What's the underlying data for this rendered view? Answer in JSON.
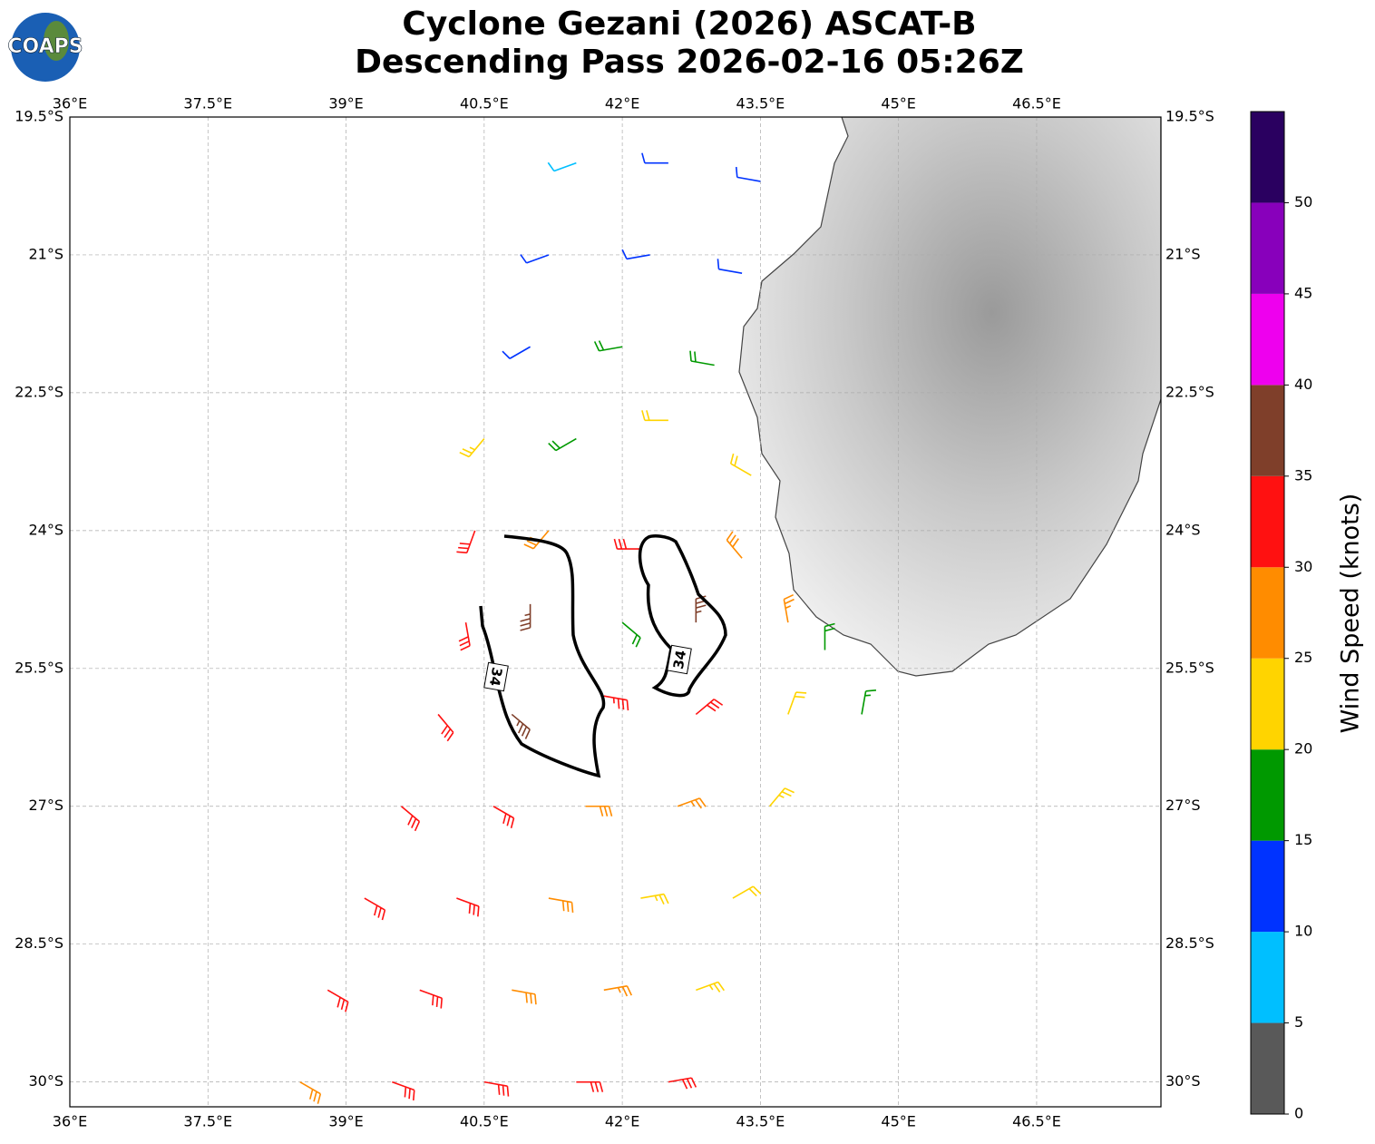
{
  "chart_data": {
    "type": "wind-barb-map",
    "title": "Cyclone Gezani (2026) ASCAT-B",
    "subtitle": "Descending Pass 2026-02-16 05:26Z",
    "logo": "COAPS",
    "xlim": [
      36,
      47.85
    ],
    "ylim": [
      -30.27,
      -19.5
    ],
    "xticks": [
      {
        "value": 36,
        "label": "36°E"
      },
      {
        "value": 37.5,
        "label": "37.5°E"
      },
      {
        "value": 39,
        "label": "39°E"
      },
      {
        "value": 40.5,
        "label": "40.5°E"
      },
      {
        "value": 42,
        "label": "42°E"
      },
      {
        "value": 43.5,
        "label": "43.5°E"
      },
      {
        "value": 45,
        "label": "45°E"
      },
      {
        "value": 46.5,
        "label": "46.5°E"
      }
    ],
    "yticks": [
      {
        "value": -19.5,
        "label": "19.5°S"
      },
      {
        "value": -21,
        "label": "21°S"
      },
      {
        "value": -22.5,
        "label": "22.5°S"
      },
      {
        "value": -24,
        "label": "24°S"
      },
      {
        "value": -25.5,
        "label": "25.5°S"
      },
      {
        "value": -27,
        "label": "27°S"
      },
      {
        "value": -28.5,
        "label": "28.5°S"
      },
      {
        "value": -30,
        "label": "30°S"
      }
    ],
    "grid": true,
    "contour_level": 34,
    "colorbar": {
      "label": "Wind Speed (knots)",
      "bounds": [
        0,
        5,
        10,
        15,
        20,
        25,
        30,
        35,
        40,
        45,
        50,
        55
      ],
      "colors": [
        "#595959",
        "#00bfff",
        "#0033ff",
        "#009900",
        "#ffd400",
        "#ff8c00",
        "#ff1111",
        "#7f3f2a",
        "#ee00ee",
        "#8800bb",
        "#2a0060"
      ],
      "ticks": [
        0,
        5,
        10,
        15,
        20,
        25,
        30,
        35,
        40,
        45,
        50
      ]
    },
    "barbs": [
      {
        "lon": 41.5,
        "lat": -20.0,
        "speed": 8,
        "direction": 250
      },
      {
        "lon": 42.5,
        "lat": -20.0,
        "speed": 12,
        "direction": 270
      },
      {
        "lon": 43.5,
        "lat": -20.2,
        "speed": 12,
        "direction": 280
      },
      {
        "lon": 41.2,
        "lat": -21.0,
        "speed": 12,
        "direction": 250
      },
      {
        "lon": 42.3,
        "lat": -21.0,
        "speed": 12,
        "direction": 260
      },
      {
        "lon": 43.3,
        "lat": -21.2,
        "speed": 10,
        "direction": 280
      },
      {
        "lon": 41.0,
        "lat": -22.0,
        "speed": 12,
        "direction": 240
      },
      {
        "lon": 42.0,
        "lat": -22.0,
        "speed": 18,
        "direction": 260
      },
      {
        "lon": 43.0,
        "lat": -22.2,
        "speed": 18,
        "direction": 280
      },
      {
        "lon": 40.5,
        "lat": -23.0,
        "speed": 24,
        "direction": 220
      },
      {
        "lon": 41.5,
        "lat": -23.0,
        "speed": 18,
        "direction": 240
      },
      {
        "lon": 42.5,
        "lat": -22.8,
        "speed": 22,
        "direction": 270
      },
      {
        "lon": 43.4,
        "lat": -23.4,
        "speed": 22,
        "direction": 300
      },
      {
        "lon": 40.4,
        "lat": -24.0,
        "speed": 32,
        "direction": 200
      },
      {
        "lon": 41.2,
        "lat": -24.0,
        "speed": 28,
        "direction": 220
      },
      {
        "lon": 42.2,
        "lat": -24.2,
        "speed": 30,
        "direction": 270
      },
      {
        "lon": 43.3,
        "lat": -24.3,
        "speed": 28,
        "direction": 320
      },
      {
        "lon": 40.3,
        "lat": -25.0,
        "speed": 32,
        "direction": 170
      },
      {
        "lon": 41.0,
        "lat": -24.8,
        "speed": 37,
        "direction": 180
      },
      {
        "lon": 42.0,
        "lat": -25.0,
        "speed": 18,
        "direction": 130
      },
      {
        "lon": 42.8,
        "lat": -25.0,
        "speed": 37,
        "direction": 0
      },
      {
        "lon": 43.8,
        "lat": -25.0,
        "speed": 26,
        "direction": 350
      },
      {
        "lon": 44.2,
        "lat": -25.3,
        "speed": 18,
        "direction": 0
      },
      {
        "lon": 40.0,
        "lat": -26.0,
        "speed": 30,
        "direction": 140
      },
      {
        "lon": 40.8,
        "lat": -26.0,
        "speed": 37,
        "direction": 130
      },
      {
        "lon": 41.8,
        "lat": -25.8,
        "speed": 33,
        "direction": 100
      },
      {
        "lon": 42.8,
        "lat": -26.0,
        "speed": 30,
        "direction": 50
      },
      {
        "lon": 43.8,
        "lat": -26.0,
        "speed": 22,
        "direction": 20
      },
      {
        "lon": 44.6,
        "lat": -26.0,
        "speed": 16,
        "direction": 10
      },
      {
        "lon": 39.6,
        "lat": -27.0,
        "speed": 32,
        "direction": 130
      },
      {
        "lon": 40.6,
        "lat": -27.0,
        "speed": 30,
        "direction": 120
      },
      {
        "lon": 41.6,
        "lat": -27.0,
        "speed": 28,
        "direction": 90
      },
      {
        "lon": 42.6,
        "lat": -27.0,
        "speed": 26,
        "direction": 70
      },
      {
        "lon": 43.6,
        "lat": -27.0,
        "speed": 24,
        "direction": 40
      },
      {
        "lon": 39.2,
        "lat": -28.0,
        "speed": 32,
        "direction": 120
      },
      {
        "lon": 40.2,
        "lat": -28.0,
        "speed": 30,
        "direction": 110
      },
      {
        "lon": 41.2,
        "lat": -28.0,
        "speed": 28,
        "direction": 100
      },
      {
        "lon": 42.2,
        "lat": -28.0,
        "speed": 24,
        "direction": 80
      },
      {
        "lon": 43.2,
        "lat": -28.0,
        "speed": 22,
        "direction": 60
      },
      {
        "lon": 38.8,
        "lat": -29.0,
        "speed": 32,
        "direction": 120
      },
      {
        "lon": 39.8,
        "lat": -29.0,
        "speed": 30,
        "direction": 110
      },
      {
        "lon": 40.8,
        "lat": -29.0,
        "speed": 28,
        "direction": 100
      },
      {
        "lon": 41.8,
        "lat": -29.0,
        "speed": 26,
        "direction": 80
      },
      {
        "lon": 42.8,
        "lat": -29.0,
        "speed": 24,
        "direction": 70
      },
      {
        "lon": 38.5,
        "lat": -30.0,
        "speed": 28,
        "direction": 120
      },
      {
        "lon": 39.5,
        "lat": -30.0,
        "speed": 30,
        "direction": 110
      },
      {
        "lon": 40.5,
        "lat": -30.0,
        "speed": 32,
        "direction": 100
      },
      {
        "lon": 41.5,
        "lat": -30.0,
        "speed": 30,
        "direction": 90
      },
      {
        "lon": 42.5,
        "lat": -30.0,
        "speed": 32,
        "direction": 80
      }
    ]
  }
}
